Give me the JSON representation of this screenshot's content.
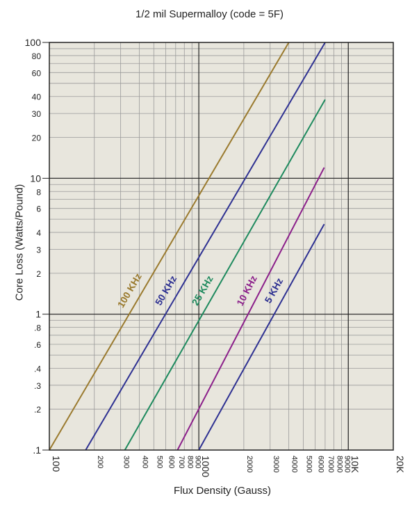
{
  "chart_data": {
    "type": "line",
    "title": "1/2 mil Supermalloy (code = 5F)",
    "xlabel": "Flux Density (Gauss)",
    "ylabel": "Core Loss (Watts/Pound)",
    "x_scale": "log",
    "y_scale": "log",
    "xlim": [
      100,
      20000
    ],
    "ylim": [
      0.1,
      100
    ],
    "grid": true,
    "x_ticks": [
      {
        "value": 100,
        "label": "100",
        "major": true
      },
      {
        "value": 200,
        "label": "200"
      },
      {
        "value": 300,
        "label": "300"
      },
      {
        "value": 400,
        "label": "400"
      },
      {
        "value": 500,
        "label": "500"
      },
      {
        "value": 600,
        "label": "600"
      },
      {
        "value": 700,
        "label": "700"
      },
      {
        "value": 800,
        "label": "800"
      },
      {
        "value": 900,
        "label": "900"
      },
      {
        "value": 1000,
        "label": "1000",
        "major": true
      },
      {
        "value": 2000,
        "label": "2000"
      },
      {
        "value": 3000,
        "label": "3000"
      },
      {
        "value": 4000,
        "label": "4000"
      },
      {
        "value": 5000,
        "label": "5000"
      },
      {
        "value": 6000,
        "label": "6000"
      },
      {
        "value": 7000,
        "label": "7000"
      },
      {
        "value": 8000,
        "label": "8000"
      },
      {
        "value": 9000,
        "label": "9000"
      },
      {
        "value": 10000,
        "label": "10K",
        "major": true
      },
      {
        "value": 20000,
        "label": "20K",
        "major": true
      }
    ],
    "y_ticks": [
      {
        "value": 0.1,
        "label": ".1",
        "major": true
      },
      {
        "value": 0.2,
        "label": ".2"
      },
      {
        "value": 0.3,
        "label": ".3"
      },
      {
        "value": 0.4,
        "label": ".4"
      },
      {
        "value": 0.6,
        "label": ".6"
      },
      {
        "value": 0.8,
        "label": ".8"
      },
      {
        "value": 1,
        "label": "1",
        "major": true
      },
      {
        "value": 2,
        "label": "2"
      },
      {
        "value": 3,
        "label": "3"
      },
      {
        "value": 4,
        "label": "4"
      },
      {
        "value": 6,
        "label": "6"
      },
      {
        "value": 8,
        "label": "8"
      },
      {
        "value": 10,
        "label": "10",
        "major": true
      },
      {
        "value": 20,
        "label": "20"
      },
      {
        "value": 30,
        "label": "30"
      },
      {
        "value": 40,
        "label": "40"
      },
      {
        "value": 60,
        "label": "60"
      },
      {
        "value": 80,
        "label": "80"
      },
      {
        "value": 100,
        "label": "100",
        "major": true
      }
    ],
    "series": [
      {
        "name": "100 KHz",
        "color": "#9a7a2e",
        "x": [
          100,
          4000
        ],
        "y": [
          0.1,
          100
        ]
      },
      {
        "name": "50 KHz",
        "color": "#2e3192",
        "x": [
          175,
          7000
        ],
        "y": [
          0.1,
          100
        ]
      },
      {
        "name": "25 KHz",
        "color": "#1e8a5e",
        "x": [
          320,
          7000
        ],
        "y": [
          0.1,
          38
        ]
      },
      {
        "name": "10 KHz",
        "color": "#8b1f8a",
        "x": [
          720,
          6900
        ],
        "y": [
          0.1,
          12
        ]
      },
      {
        "name": "5 KHz",
        "color": "#2e3192",
        "x": [
          1000,
          6900
        ],
        "y": [
          0.1,
          4.6
        ]
      }
    ],
    "colors": {
      "plot_background": "#e8e6dd",
      "grid_minor": "#9a9a9a",
      "grid_major": "#222222"
    }
  }
}
